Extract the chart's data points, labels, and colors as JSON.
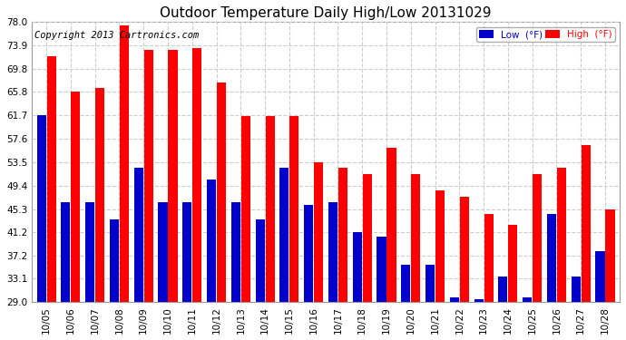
{
  "title": "Outdoor Temperature Daily High/Low 20131029",
  "copyright": "Copyright 2013 Cartronics.com",
  "legend_low": "Low  (°F)",
  "legend_high": "High  (°F)",
  "dates": [
    "10/05",
    "10/06",
    "10/07",
    "10/08",
    "10/09",
    "10/10",
    "10/11",
    "10/12",
    "10/13",
    "10/14",
    "10/15",
    "10/16",
    "10/17",
    "10/18",
    "10/19",
    "10/20",
    "10/21",
    "10/22",
    "10/23",
    "10/24",
    "10/25",
    "10/26",
    "10/27",
    "10/28"
  ],
  "high": [
    72.0,
    65.8,
    66.5,
    77.5,
    73.2,
    73.2,
    73.5,
    67.5,
    61.5,
    61.5,
    61.5,
    53.5,
    52.5,
    51.5,
    56.0,
    51.5,
    48.5,
    47.5,
    44.5,
    42.5,
    51.5,
    52.5,
    56.5,
    45.3
  ],
  "low": [
    61.7,
    46.5,
    46.5,
    43.5,
    52.5,
    46.5,
    46.5,
    50.5,
    46.5,
    43.5,
    52.5,
    46.0,
    46.5,
    41.2,
    40.5,
    35.5,
    35.5,
    29.9,
    29.5,
    33.5,
    29.9,
    44.5,
    33.5,
    38.0
  ],
  "ylim_min": 29.0,
  "ylim_max": 78.0,
  "yticks": [
    29.0,
    33.1,
    37.2,
    41.2,
    45.3,
    49.4,
    53.5,
    57.6,
    61.7,
    65.8,
    69.8,
    73.9,
    78.0
  ],
  "bar_color_high": "#ff0000",
  "bar_color_low": "#0000cc",
  "bg_color": "#ffffff",
  "plot_bg_color": "#ffffff",
  "grid_color": "#cccccc",
  "title_fontsize": 11,
  "copyright_fontsize": 7.5
}
